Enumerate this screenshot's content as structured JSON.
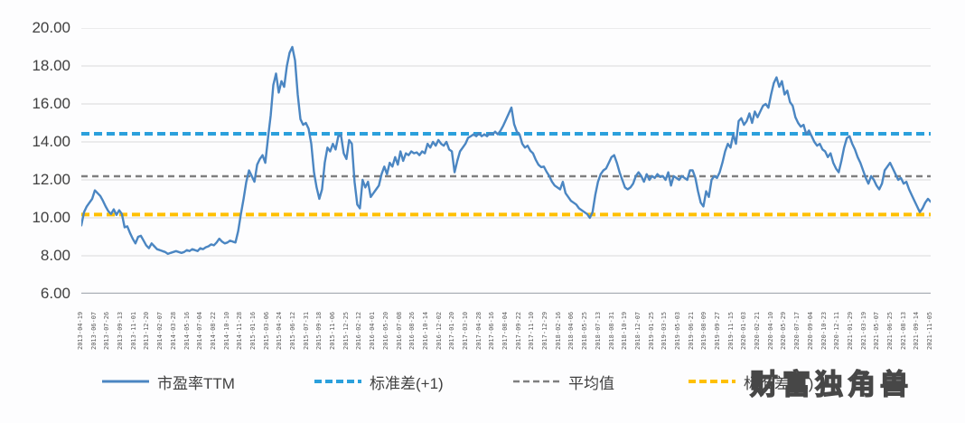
{
  "watermark": {
    "text": "财富独角兽"
  },
  "chart_data": {
    "type": "line",
    "title": "",
    "xlabel": "",
    "ylabel": "",
    "ylim": [
      6,
      20
    ],
    "grid": true,
    "legend_position": "bottom",
    "yticks": [
      "20.00",
      "18.00",
      "16.00",
      "14.00",
      "12.00",
      "10.00",
      "8.00",
      "6.00"
    ],
    "colors": {
      "grid": "#d9d9d9",
      "axis": "#abafb7",
      "text": "#404040",
      "tick_text": "#595959"
    },
    "x_labels": [
      "2013-04-19",
      "2013-06-07",
      "2013-07-26",
      "2013-09-13",
      "2013-11-01",
      "2013-12-20",
      "2014-02-07",
      "2014-03-28",
      "2014-05-16",
      "2014-07-04",
      "2014-08-22",
      "2014-10-10",
      "2014-11-28",
      "2015-01-16",
      "2015-03-06",
      "2015-04-24",
      "2015-06-12",
      "2015-07-31",
      "2015-09-18",
      "2015-11-06",
      "2015-12-25",
      "2016-02-12",
      "2016-04-01",
      "2016-05-20",
      "2016-07-08",
      "2016-08-26",
      "2016-10-14",
      "2016-12-02",
      "2017-01-20",
      "2017-03-10",
      "2017-04-28",
      "2017-06-16",
      "2017-08-04",
      "2017-09-22",
      "2017-11-10",
      "2017-12-29",
      "2018-02-16",
      "2018-04-06",
      "2018-05-25",
      "2018-07-13",
      "2018-08-31",
      "2018-10-19",
      "2018-12-07",
      "2019-01-25",
      "2019-03-15",
      "2019-05-03",
      "2019-06-21",
      "2019-08-09",
      "2019-09-27",
      "2019-11-15",
      "2020-01-03",
      "2020-02-21",
      "2020-04-10",
      "2020-05-29",
      "2020-07-17",
      "2020-09-04",
      "2020-10-23",
      "2020-12-11",
      "2021-01-29",
      "2021-03-19",
      "2021-05-07",
      "2021-06-25",
      "2021-08-13",
      "2021-09-14",
      "2021-11-05"
    ],
    "series": [
      {
        "name": "市盈率TTM",
        "kind": "line",
        "color": "#4b86c2",
        "values": [
          9.6,
          10.3,
          10.6,
          10.8,
          11.0,
          11.45,
          11.3,
          11.15,
          10.9,
          10.6,
          10.35,
          10.2,
          10.45,
          10.15,
          10.4,
          10.2,
          9.5,
          9.55,
          9.2,
          8.9,
          8.65,
          9.0,
          9.05,
          8.8,
          8.55,
          8.4,
          8.65,
          8.5,
          8.35,
          8.3,
          8.25,
          8.2,
          8.1,
          8.15,
          8.2,
          8.25,
          8.2,
          8.15,
          8.2,
          8.3,
          8.25,
          8.35,
          8.3,
          8.25,
          8.4,
          8.35,
          8.45,
          8.5,
          8.6,
          8.55,
          8.7,
          8.9,
          8.75,
          8.65,
          8.7,
          8.8,
          8.75,
          8.7,
          9.3,
          10.2,
          11.0,
          11.9,
          12.5,
          12.2,
          11.9,
          12.8,
          13.1,
          13.3,
          12.9,
          14.2,
          15.4,
          17.0,
          17.6,
          16.6,
          17.2,
          16.9,
          18.0,
          18.7,
          19.0,
          18.3,
          16.5,
          15.2,
          14.9,
          15.0,
          14.7,
          13.9,
          12.4,
          11.6,
          11.0,
          11.5,
          12.9,
          13.7,
          13.5,
          13.9,
          13.6,
          14.3,
          14.35,
          13.4,
          13.1,
          14.1,
          13.9,
          11.9,
          10.7,
          10.5,
          12.0,
          11.6,
          11.9,
          11.1,
          11.3,
          11.5,
          11.7,
          12.3,
          12.7,
          12.3,
          12.9,
          12.7,
          13.2,
          12.8,
          13.5,
          13.0,
          13.4,
          13.3,
          13.5,
          13.4,
          13.45,
          13.3,
          13.5,
          13.4,
          13.9,
          13.7,
          14.0,
          13.8,
          14.1,
          13.9,
          13.8,
          14.0,
          13.6,
          13.5,
          12.4,
          13.0,
          13.5,
          13.7,
          13.9,
          14.22,
          14.3,
          14.4,
          14.3,
          14.46,
          14.3,
          14.4,
          14.3,
          14.46,
          14.4,
          14.54,
          14.4,
          14.6,
          14.86,
          15.17,
          15.49,
          15.81,
          14.94,
          14.54,
          14.4,
          13.9,
          13.7,
          13.8,
          13.54,
          13.4,
          13.06,
          12.8,
          12.67,
          12.7,
          12.43,
          12.2,
          11.9,
          11.7,
          11.6,
          11.5,
          11.9,
          11.3,
          11.1,
          10.9,
          10.8,
          10.7,
          10.5,
          10.4,
          10.3,
          10.2,
          10.0,
          10.3,
          11.2,
          11.9,
          12.3,
          12.5,
          12.6,
          12.9,
          13.2,
          13.3,
          12.9,
          12.4,
          12.0,
          11.6,
          11.5,
          11.6,
          11.8,
          12.2,
          12.4,
          12.2,
          11.9,
          12.3,
          12.0,
          12.2,
          12.1,
          12.3,
          12.15,
          12.2,
          12.0,
          12.4,
          11.7,
          12.2,
          12.1,
          12.0,
          12.2,
          12.1,
          12.0,
          12.5,
          12.5,
          12.1,
          11.4,
          10.8,
          10.6,
          11.4,
          11.1,
          12.0,
          12.2,
          12.1,
          12.4,
          12.9,
          13.5,
          13.9,
          13.7,
          14.4,
          13.9,
          15.1,
          15.25,
          14.9,
          15.1,
          15.5,
          15.0,
          15.6,
          15.3,
          15.6,
          15.9,
          16.0,
          15.8,
          16.5,
          17.1,
          17.4,
          16.9,
          17.2,
          16.5,
          16.7,
          16.1,
          15.9,
          15.3,
          15.0,
          14.8,
          14.9,
          14.4,
          14.6,
          14.3,
          14.0,
          13.8,
          13.9,
          13.6,
          13.5,
          13.2,
          13.4,
          12.9,
          12.6,
          12.4,
          13.0,
          13.7,
          14.2,
          14.3,
          13.9,
          13.6,
          13.2,
          12.9,
          12.5,
          12.1,
          11.8,
          12.2,
          12.0,
          11.7,
          11.5,
          11.8,
          12.5,
          12.7,
          12.9,
          12.6,
          12.3,
          12.0,
          12.1,
          11.8,
          11.9,
          11.5,
          11.2,
          10.9,
          10.6,
          10.3,
          10.5,
          10.8,
          11.0,
          10.85
        ]
      },
      {
        "name": "标准差(+1)",
        "kind": "hline",
        "color": "#2ba0dc",
        "value": 14.43
      },
      {
        "name": "平均值",
        "kind": "hline",
        "color": "#7f7f7f",
        "value": 12.19
      },
      {
        "name": "标准差(-1)",
        "kind": "hline",
        "color": "#ffc000",
        "value": 10.17
      }
    ]
  }
}
